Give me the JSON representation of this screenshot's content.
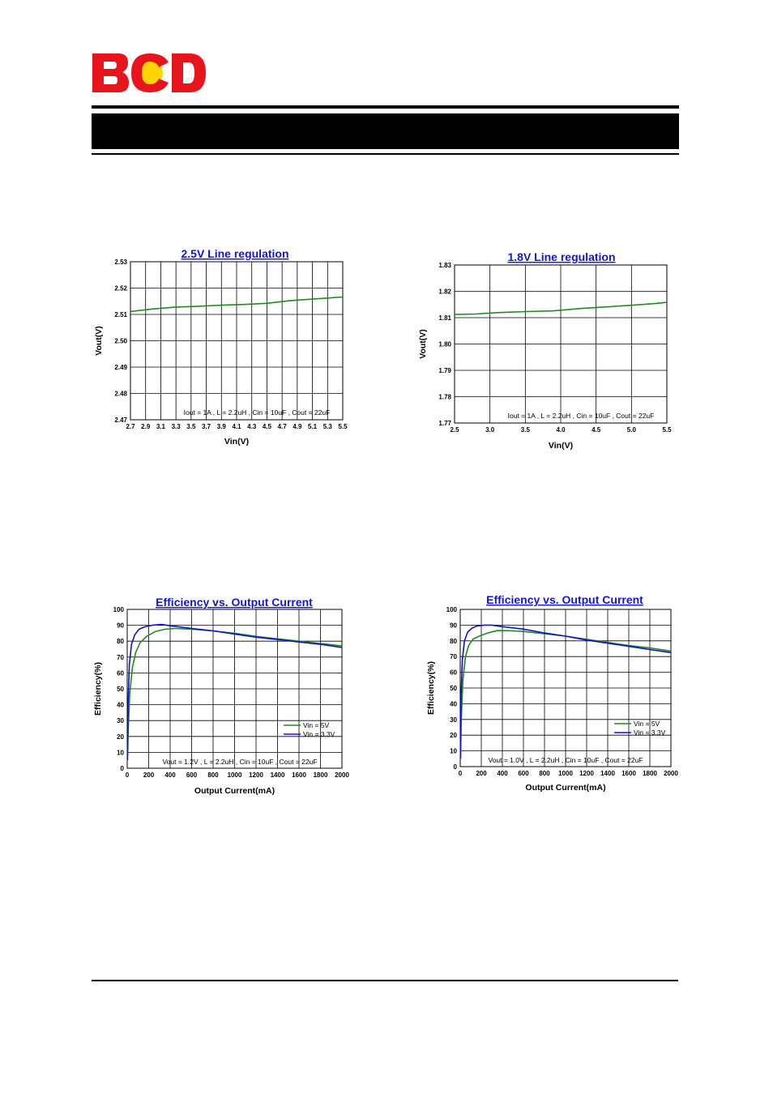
{
  "logo": {
    "text": "BCD",
    "colors": {
      "letters": "#e8141c",
      "circle": "#ffd600"
    }
  },
  "colors": {
    "title": "#1414e0",
    "green": "#1e8c1e",
    "blue": "#1010d8",
    "grid": "#000000"
  },
  "chart_data": [
    {
      "type": "line",
      "title": "2.5V Line regulation",
      "xlabel": "Vin(V)",
      "ylabel": "Vout(V)",
      "xlim": [
        2.7,
        5.5
      ],
      "ylim": [
        2.47,
        2.53
      ],
      "xticks": [
        2.7,
        2.9,
        3.1,
        3.3,
        3.5,
        3.7,
        3.9,
        4.1,
        4.3,
        4.5,
        4.7,
        4.9,
        5.1,
        5.3,
        5.5
      ],
      "xtick_labels": [
        "2.7",
        "2.9",
        "3.1",
        "3.3",
        "3.5",
        "3.7",
        "3.9",
        "4.1",
        "4.3",
        "4.5",
        "4.7",
        "4.9",
        "5.1",
        "5.3",
        "5.5"
      ],
      "yticks": [
        2.47,
        2.48,
        2.49,
        2.5,
        2.51,
        2.52,
        2.53
      ],
      "ytick_labels": [
        "2.47",
        "2.48",
        "2.49",
        "2.50",
        "2.51",
        "2.52",
        "2.53"
      ],
      "grid": true,
      "annotation": "Iout = 1A , L = 2.2uH , Cin = 10uF , Cout = 22uF",
      "series": [
        {
          "color": "#1e8c1e",
          "x": [
            2.7,
            3.0,
            3.3,
            3.6,
            3.9,
            4.2,
            4.5,
            4.8,
            5.1,
            5.3,
            5.5
          ],
          "y": [
            2.5111,
            2.5121,
            2.5128,
            2.5131,
            2.5135,
            2.5138,
            2.5142,
            2.5152,
            2.5158,
            2.5162,
            2.5166
          ]
        }
      ]
    },
    {
      "type": "line",
      "title": "1.8V Line regulation",
      "xlabel": "Vin(V)",
      "ylabel": "Vout(V)",
      "xlim": [
        2.5,
        5.5
      ],
      "ylim": [
        1.77,
        1.83
      ],
      "xticks": [
        2.5,
        3.0,
        3.5,
        4.0,
        4.5,
        5.0,
        5.5
      ],
      "xtick_labels": [
        "2.5",
        "3.0",
        "3.5",
        "4.0",
        "4.5",
        "5.0",
        "5.5"
      ],
      "yticks": [
        1.77,
        1.78,
        1.79,
        1.8,
        1.81,
        1.82,
        1.83
      ],
      "ytick_labels": [
        "1.77",
        "1.78",
        "1.79",
        "1.80",
        "1.81",
        "1.82",
        "1.83"
      ],
      "grid": true,
      "annotation": "Iout = 1A , L = 2.2uH , Cin = 10uF , Cout = 22uF",
      "series": [
        {
          "color": "#1e8c1e",
          "x": [
            2.5,
            2.8,
            3.1,
            3.5,
            3.9,
            4.3,
            4.7,
            5.0,
            5.3,
            5.5
          ],
          "y": [
            1.8112,
            1.8114,
            1.8119,
            1.8123,
            1.8126,
            1.8135,
            1.8142,
            1.8147,
            1.8153,
            1.8158
          ]
        }
      ]
    },
    {
      "type": "line",
      "title": "Efficiency vs. Output Current",
      "xlabel": "Output Current(mA)",
      "ylabel": "Efficiency(%)",
      "xlim": [
        0,
        2000
      ],
      "ylim": [
        0,
        100
      ],
      "xticks": [
        0,
        200,
        400,
        600,
        800,
        1000,
        1200,
        1400,
        1600,
        1800,
        2000
      ],
      "xtick_labels": [
        "0",
        "200",
        "400",
        "600",
        "800",
        "1000",
        "1200",
        "1400",
        "1600",
        "1800",
        "2000"
      ],
      "yticks": [
        0,
        10,
        20,
        30,
        40,
        50,
        60,
        70,
        80,
        90,
        100
      ],
      "ytick_labels": [
        "0",
        "10",
        "20",
        "30",
        "40",
        "50",
        "60",
        "70",
        "80",
        "90",
        "100"
      ],
      "grid": true,
      "legend": "bottom-right",
      "annotation": "Vout = 1.2V , L = 2.2uH , Cin = 10uF , Cout = 22uF",
      "series": [
        {
          "name": "Vin = 5V",
          "color": "#1e8c1e",
          "x": [
            2,
            10,
            25,
            50,
            80,
            120,
            180,
            260,
            350,
            450,
            600,
            800,
            1000,
            1200,
            1400,
            1600,
            1800,
            2000
          ],
          "y": [
            5,
            25,
            48,
            64,
            73,
            79,
            83,
            86,
            87.5,
            88,
            87.5,
            86.5,
            85,
            83,
            81.5,
            80,
            78.5,
            77
          ]
        },
        {
          "name": "Vin = 3.3V",
          "color": "#1010d8",
          "x": [
            2,
            8,
            20,
            40,
            70,
            110,
            160,
            230,
            320,
            420,
            600,
            800,
            1000,
            1200,
            1400,
            1600,
            1800,
            2000
          ],
          "y": [
            5,
            40,
            65,
            78,
            84,
            87.5,
            89,
            90,
            90.5,
            89.5,
            88,
            86.5,
            84.5,
            82.5,
            81,
            79.5,
            78,
            76
          ]
        }
      ]
    },
    {
      "type": "line",
      "title": "Efficiency vs. Output Current",
      "xlabel": "Output Current(mA)",
      "ylabel": "Efficiency(%)",
      "xlim": [
        0,
        2000
      ],
      "ylim": [
        0,
        100
      ],
      "xticks": [
        0,
        200,
        400,
        600,
        800,
        1000,
        1200,
        1400,
        1600,
        1800,
        2000
      ],
      "xtick_labels": [
        "0",
        "200",
        "400",
        "600",
        "800",
        "1000",
        "1200",
        "1400",
        "1600",
        "1800",
        "2000"
      ],
      "yticks": [
        0,
        10,
        20,
        30,
        40,
        50,
        60,
        70,
        80,
        90,
        100
      ],
      "ytick_labels": [
        "0",
        "10",
        "20",
        "30",
        "40",
        "50",
        "60",
        "70",
        "80",
        "90",
        "100"
      ],
      "grid": true,
      "legend": "bottom-right",
      "annotation": "Vout = 1.0V , L = 2.2uH , Cin = 10uF , Cout = 22uF",
      "series": [
        {
          "name": "Vin = 5V",
          "color": "#1e8c1e",
          "x": [
            2,
            10,
            25,
            50,
            80,
            120,
            180,
            260,
            350,
            450,
            600,
            800,
            1000,
            1200,
            1400,
            1600,
            1800,
            2000
          ],
          "y": [
            5,
            30,
            55,
            70,
            77,
            81,
            83,
            85,
            86.5,
            86.5,
            86,
            84.5,
            83,
            81,
            79,
            77,
            75.5,
            73.5
          ]
        },
        {
          "name": "Vin = 3.3V",
          "color": "#1010d8",
          "x": [
            2,
            8,
            20,
            40,
            70,
            110,
            160,
            230,
            300,
            400,
            600,
            800,
            1000,
            1200,
            1400,
            1600,
            1800,
            2000
          ],
          "y": [
            5,
            45,
            68,
            80,
            85.5,
            88,
            89.5,
            90,
            90,
            89,
            87.5,
            85,
            83,
            80.5,
            78.5,
            76.5,
            74.5,
            72.5
          ]
        }
      ]
    }
  ]
}
